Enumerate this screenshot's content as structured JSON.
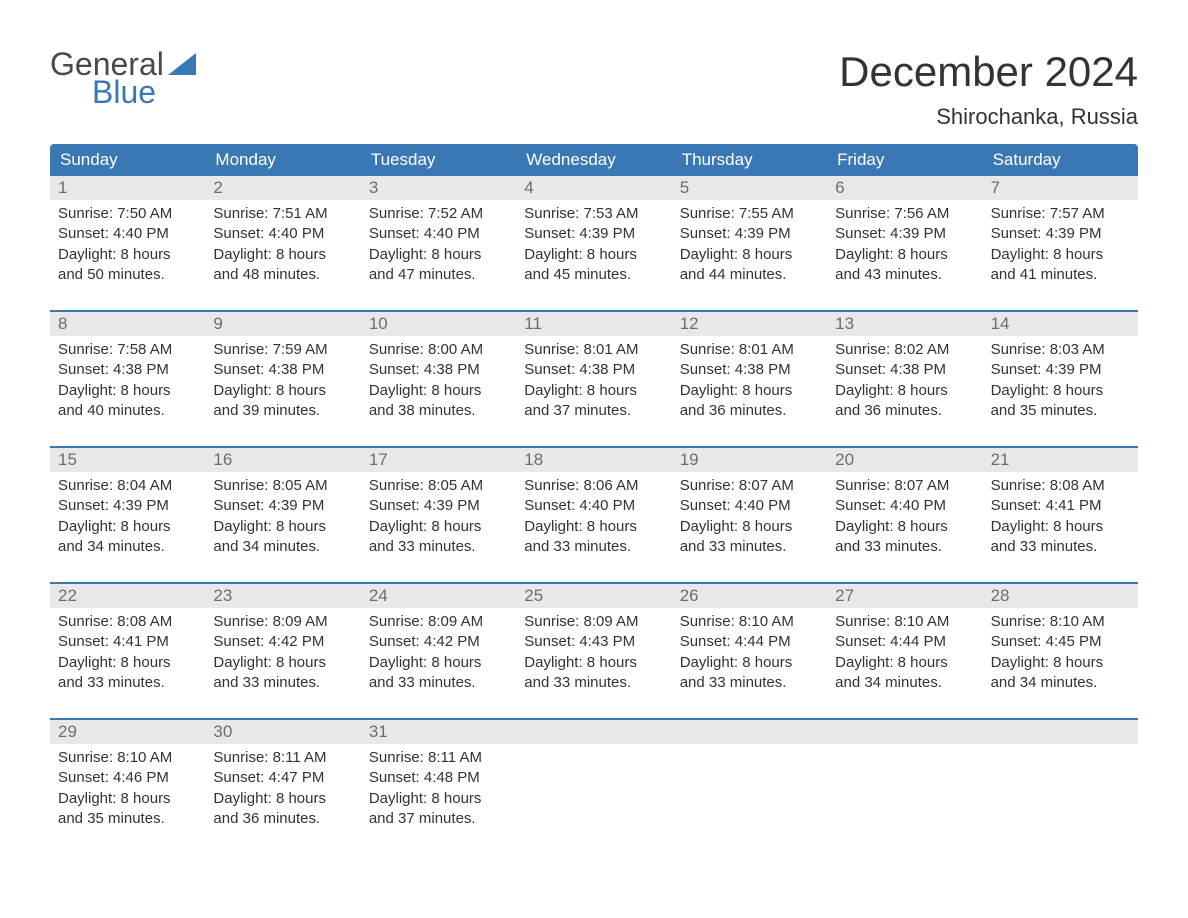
{
  "logo": {
    "line1": "General",
    "line2": "Blue"
  },
  "title": "December 2024",
  "location": "Shirochanka, Russia",
  "colors": {
    "header_bg": "#3a78b5",
    "header_text": "#ffffff",
    "daynum_bg": "#e8e8e8",
    "daynum_text": "#6d6d6d",
    "body_text": "#333333",
    "sep": "#3a78b5",
    "page_bg": "#ffffff"
  },
  "day_names": [
    "Sunday",
    "Monday",
    "Tuesday",
    "Wednesday",
    "Thursday",
    "Friday",
    "Saturday"
  ],
  "weeks": [
    {
      "nums": [
        "1",
        "2",
        "3",
        "4",
        "5",
        "6",
        "7"
      ],
      "cells": [
        {
          "sunrise": "Sunrise: 7:50 AM",
          "sunset": "Sunset: 4:40 PM",
          "dl1": "Daylight: 8 hours",
          "dl2": "and 50 minutes."
        },
        {
          "sunrise": "Sunrise: 7:51 AM",
          "sunset": "Sunset: 4:40 PM",
          "dl1": "Daylight: 8 hours",
          "dl2": "and 48 minutes."
        },
        {
          "sunrise": "Sunrise: 7:52 AM",
          "sunset": "Sunset: 4:40 PM",
          "dl1": "Daylight: 8 hours",
          "dl2": "and 47 minutes."
        },
        {
          "sunrise": "Sunrise: 7:53 AM",
          "sunset": "Sunset: 4:39 PM",
          "dl1": "Daylight: 8 hours",
          "dl2": "and 45 minutes."
        },
        {
          "sunrise": "Sunrise: 7:55 AM",
          "sunset": "Sunset: 4:39 PM",
          "dl1": "Daylight: 8 hours",
          "dl2": "and 44 minutes."
        },
        {
          "sunrise": "Sunrise: 7:56 AM",
          "sunset": "Sunset: 4:39 PM",
          "dl1": "Daylight: 8 hours",
          "dl2": "and 43 minutes."
        },
        {
          "sunrise": "Sunrise: 7:57 AM",
          "sunset": "Sunset: 4:39 PM",
          "dl1": "Daylight: 8 hours",
          "dl2": "and 41 minutes."
        }
      ]
    },
    {
      "nums": [
        "8",
        "9",
        "10",
        "11",
        "12",
        "13",
        "14"
      ],
      "cells": [
        {
          "sunrise": "Sunrise: 7:58 AM",
          "sunset": "Sunset: 4:38 PM",
          "dl1": "Daylight: 8 hours",
          "dl2": "and 40 minutes."
        },
        {
          "sunrise": "Sunrise: 7:59 AM",
          "sunset": "Sunset: 4:38 PM",
          "dl1": "Daylight: 8 hours",
          "dl2": "and 39 minutes."
        },
        {
          "sunrise": "Sunrise: 8:00 AM",
          "sunset": "Sunset: 4:38 PM",
          "dl1": "Daylight: 8 hours",
          "dl2": "and 38 minutes."
        },
        {
          "sunrise": "Sunrise: 8:01 AM",
          "sunset": "Sunset: 4:38 PM",
          "dl1": "Daylight: 8 hours",
          "dl2": "and 37 minutes."
        },
        {
          "sunrise": "Sunrise: 8:01 AM",
          "sunset": "Sunset: 4:38 PM",
          "dl1": "Daylight: 8 hours",
          "dl2": "and 36 minutes."
        },
        {
          "sunrise": "Sunrise: 8:02 AM",
          "sunset": "Sunset: 4:38 PM",
          "dl1": "Daylight: 8 hours",
          "dl2": "and 36 minutes."
        },
        {
          "sunrise": "Sunrise: 8:03 AM",
          "sunset": "Sunset: 4:39 PM",
          "dl1": "Daylight: 8 hours",
          "dl2": "and 35 minutes."
        }
      ]
    },
    {
      "nums": [
        "15",
        "16",
        "17",
        "18",
        "19",
        "20",
        "21"
      ],
      "cells": [
        {
          "sunrise": "Sunrise: 8:04 AM",
          "sunset": "Sunset: 4:39 PM",
          "dl1": "Daylight: 8 hours",
          "dl2": "and 34 minutes."
        },
        {
          "sunrise": "Sunrise: 8:05 AM",
          "sunset": "Sunset: 4:39 PM",
          "dl1": "Daylight: 8 hours",
          "dl2": "and 34 minutes."
        },
        {
          "sunrise": "Sunrise: 8:05 AM",
          "sunset": "Sunset: 4:39 PM",
          "dl1": "Daylight: 8 hours",
          "dl2": "and 33 minutes."
        },
        {
          "sunrise": "Sunrise: 8:06 AM",
          "sunset": "Sunset: 4:40 PM",
          "dl1": "Daylight: 8 hours",
          "dl2": "and 33 minutes."
        },
        {
          "sunrise": "Sunrise: 8:07 AM",
          "sunset": "Sunset: 4:40 PM",
          "dl1": "Daylight: 8 hours",
          "dl2": "and 33 minutes."
        },
        {
          "sunrise": "Sunrise: 8:07 AM",
          "sunset": "Sunset: 4:40 PM",
          "dl1": "Daylight: 8 hours",
          "dl2": "and 33 minutes."
        },
        {
          "sunrise": "Sunrise: 8:08 AM",
          "sunset": "Sunset: 4:41 PM",
          "dl1": "Daylight: 8 hours",
          "dl2": "and 33 minutes."
        }
      ]
    },
    {
      "nums": [
        "22",
        "23",
        "24",
        "25",
        "26",
        "27",
        "28"
      ],
      "cells": [
        {
          "sunrise": "Sunrise: 8:08 AM",
          "sunset": "Sunset: 4:41 PM",
          "dl1": "Daylight: 8 hours",
          "dl2": "and 33 minutes."
        },
        {
          "sunrise": "Sunrise: 8:09 AM",
          "sunset": "Sunset: 4:42 PM",
          "dl1": "Daylight: 8 hours",
          "dl2": "and 33 minutes."
        },
        {
          "sunrise": "Sunrise: 8:09 AM",
          "sunset": "Sunset: 4:42 PM",
          "dl1": "Daylight: 8 hours",
          "dl2": "and 33 minutes."
        },
        {
          "sunrise": "Sunrise: 8:09 AM",
          "sunset": "Sunset: 4:43 PM",
          "dl1": "Daylight: 8 hours",
          "dl2": "and 33 minutes."
        },
        {
          "sunrise": "Sunrise: 8:10 AM",
          "sunset": "Sunset: 4:44 PM",
          "dl1": "Daylight: 8 hours",
          "dl2": "and 33 minutes."
        },
        {
          "sunrise": "Sunrise: 8:10 AM",
          "sunset": "Sunset: 4:44 PM",
          "dl1": "Daylight: 8 hours",
          "dl2": "and 34 minutes."
        },
        {
          "sunrise": "Sunrise: 8:10 AM",
          "sunset": "Sunset: 4:45 PM",
          "dl1": "Daylight: 8 hours",
          "dl2": "and 34 minutes."
        }
      ]
    },
    {
      "nums": [
        "29",
        "30",
        "31",
        "",
        "",
        "",
        ""
      ],
      "cells": [
        {
          "sunrise": "Sunrise: 8:10 AM",
          "sunset": "Sunset: 4:46 PM",
          "dl1": "Daylight: 8 hours",
          "dl2": "and 35 minutes."
        },
        {
          "sunrise": "Sunrise: 8:11 AM",
          "sunset": "Sunset: 4:47 PM",
          "dl1": "Daylight: 8 hours",
          "dl2": "and 36 minutes."
        },
        {
          "sunrise": "Sunrise: 8:11 AM",
          "sunset": "Sunset: 4:48 PM",
          "dl1": "Daylight: 8 hours",
          "dl2": "and 37 minutes."
        },
        {
          "sunrise": "",
          "sunset": "",
          "dl1": "",
          "dl2": ""
        },
        {
          "sunrise": "",
          "sunset": "",
          "dl1": "",
          "dl2": ""
        },
        {
          "sunrise": "",
          "sunset": "",
          "dl1": "",
          "dl2": ""
        },
        {
          "sunrise": "",
          "sunset": "",
          "dl1": "",
          "dl2": ""
        }
      ]
    }
  ]
}
